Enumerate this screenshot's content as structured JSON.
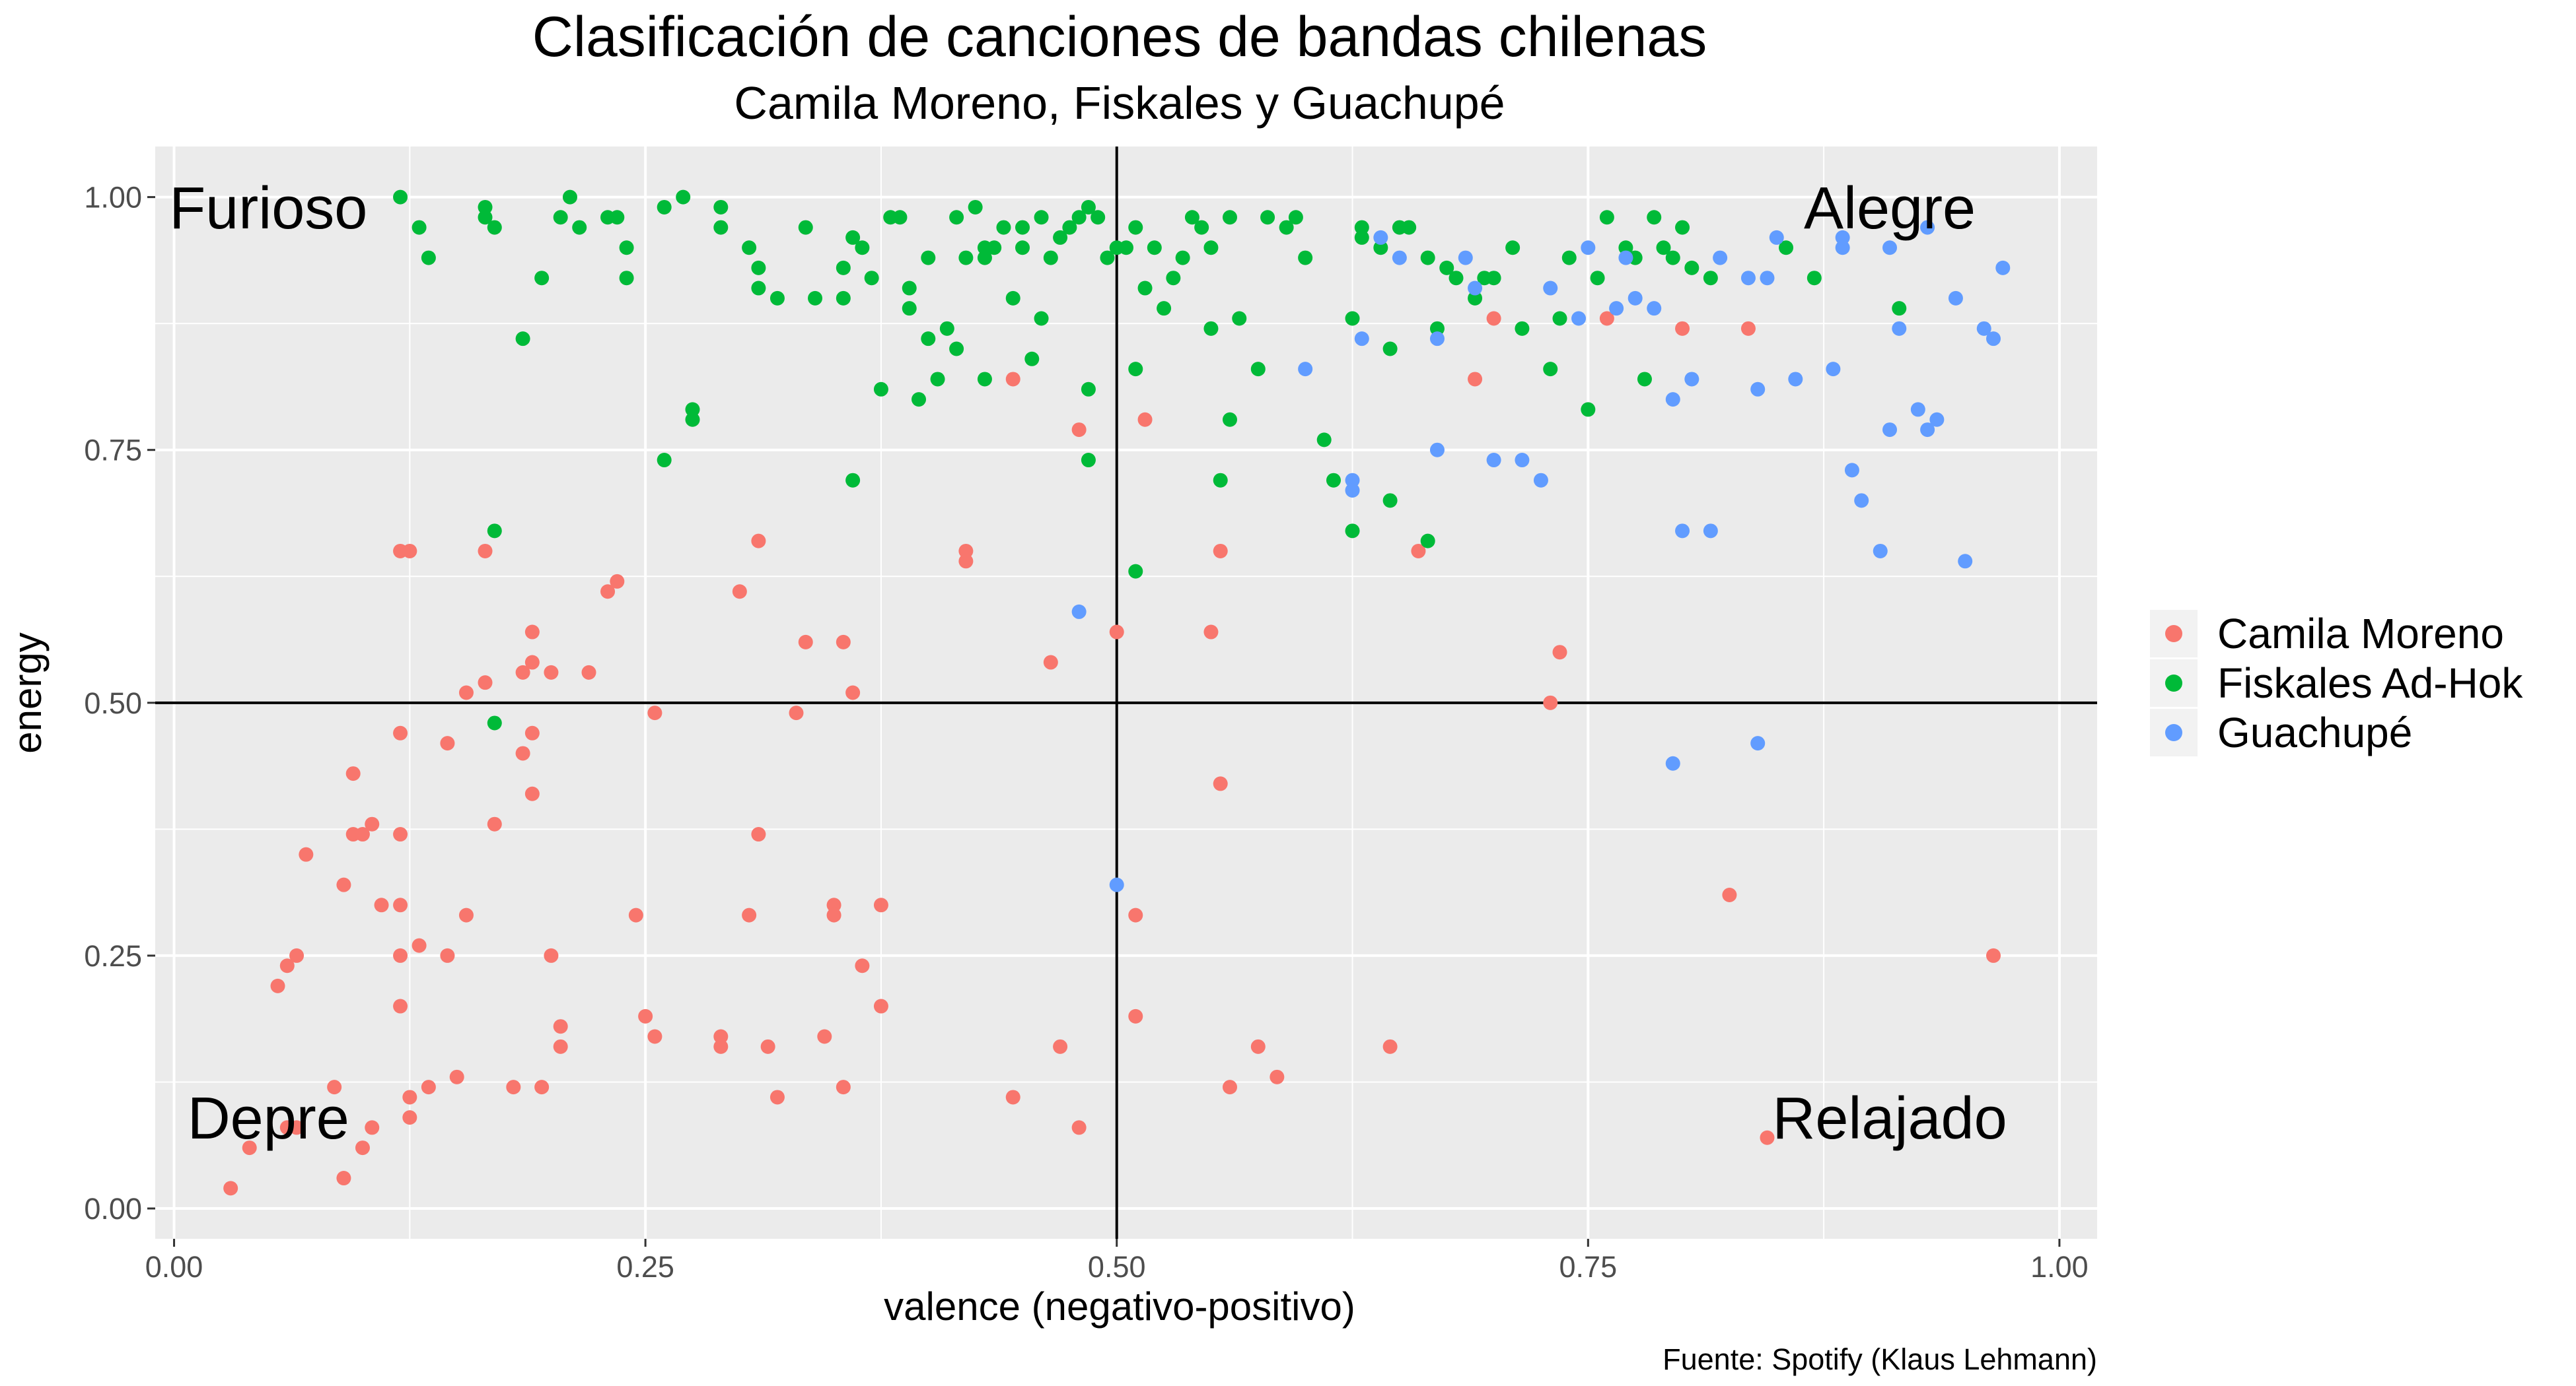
{
  "chart_data": {
    "type": "scatter",
    "title": "Clasificación de canciones de bandas chilenas",
    "subtitle": "Camila Moreno, Fiskales y Guachupé",
    "xlabel": "valence (negativo-positivo)",
    "ylabel": "energy",
    "caption": "Fuente: Spotify (Klaus Lehmann)",
    "xlim": [
      -0.01,
      1.02
    ],
    "ylim": [
      -0.03,
      1.05
    ],
    "x_ticks": [
      0,
      0.25,
      0.5,
      0.75,
      1
    ],
    "x_tick_labels": [
      "0.00",
      "0.25",
      "0.50",
      "0.75",
      "1.00"
    ],
    "y_ticks": [
      0,
      0.25,
      0.5,
      0.75,
      1
    ],
    "y_tick_labels": [
      "0.00",
      "0.25",
      "0.50",
      "0.75",
      "1.00"
    ],
    "reference_lines": {
      "x": 0.5,
      "y": 0.5
    },
    "grid": true,
    "legend_position": "right",
    "quadrant_labels": [
      {
        "text": "Furioso",
        "x": 0.05,
        "y": 0.99
      },
      {
        "text": "Alegre",
        "x": 0.91,
        "y": 0.99
      },
      {
        "text": "Depre",
        "x": 0.05,
        "y": 0.09
      },
      {
        "text": "Relajado",
        "x": 0.91,
        "y": 0.09
      }
    ],
    "series": [
      {
        "name": "Camila Moreno",
        "color": "#F8766D",
        "points": [
          [
            0.03,
            0.02
          ],
          [
            0.04,
            0.06
          ],
          [
            0.06,
            0.08
          ],
          [
            0.065,
            0.08
          ],
          [
            0.09,
            0.03
          ],
          [
            0.1,
            0.06
          ],
          [
            0.105,
            0.08
          ],
          [
            0.085,
            0.12
          ],
          [
            0.125,
            0.11
          ],
          [
            0.125,
            0.09
          ],
          [
            0.135,
            0.12
          ],
          [
            0.15,
            0.13
          ],
          [
            0.18,
            0.12
          ],
          [
            0.195,
            0.12
          ],
          [
            0.205,
            0.16
          ],
          [
            0.205,
            0.18
          ],
          [
            0.12,
            0.2
          ],
          [
            0.12,
            0.25
          ],
          [
            0.13,
            0.26
          ],
          [
            0.145,
            0.25
          ],
          [
            0.055,
            0.22
          ],
          [
            0.06,
            0.24
          ],
          [
            0.065,
            0.25
          ],
          [
            0.09,
            0.32
          ],
          [
            0.11,
            0.3
          ],
          [
            0.12,
            0.3
          ],
          [
            0.155,
            0.29
          ],
          [
            0.2,
            0.25
          ],
          [
            0.07,
            0.35
          ],
          [
            0.095,
            0.37
          ],
          [
            0.1,
            0.37
          ],
          [
            0.105,
            0.38
          ],
          [
            0.12,
            0.37
          ],
          [
            0.12,
            0.47
          ],
          [
            0.095,
            0.43
          ],
          [
            0.145,
            0.46
          ],
          [
            0.17,
            0.38
          ],
          [
            0.19,
            0.41
          ],
          [
            0.185,
            0.45
          ],
          [
            0.19,
            0.47
          ],
          [
            0.155,
            0.51
          ],
          [
            0.165,
            0.52
          ],
          [
            0.185,
            0.53
          ],
          [
            0.19,
            0.54
          ],
          [
            0.2,
            0.53
          ],
          [
            0.22,
            0.53
          ],
          [
            0.19,
            0.57
          ],
          [
            0.23,
            0.61
          ],
          [
            0.235,
            0.62
          ],
          [
            0.12,
            0.65
          ],
          [
            0.125,
            0.65
          ],
          [
            0.165,
            0.65
          ],
          [
            0.255,
            0.49
          ],
          [
            0.245,
            0.29
          ],
          [
            0.25,
            0.19
          ],
          [
            0.255,
            0.17
          ],
          [
            0.29,
            0.16
          ],
          [
            0.29,
            0.17
          ],
          [
            0.3,
            0.61
          ],
          [
            0.31,
            0.66
          ],
          [
            0.31,
            0.37
          ],
          [
            0.305,
            0.29
          ],
          [
            0.315,
            0.16
          ],
          [
            0.32,
            0.11
          ],
          [
            0.33,
            0.49
          ],
          [
            0.335,
            0.56
          ],
          [
            0.345,
            0.17
          ],
          [
            0.35,
            0.3
          ],
          [
            0.35,
            0.29
          ],
          [
            0.355,
            0.12
          ],
          [
            0.355,
            0.56
          ],
          [
            0.36,
            0.51
          ],
          [
            0.365,
            0.24
          ],
          [
            0.375,
            0.3
          ],
          [
            0.375,
            0.2
          ],
          [
            0.42,
            0.65
          ],
          [
            0.42,
            0.64
          ],
          [
            0.445,
            0.11
          ],
          [
            0.445,
            0.82
          ],
          [
            0.465,
            0.54
          ],
          [
            0.47,
            0.16
          ],
          [
            0.48,
            0.08
          ],
          [
            0.48,
            0.77
          ],
          [
            0.5,
            0.57
          ],
          [
            0.51,
            0.29
          ],
          [
            0.51,
            0.19
          ],
          [
            0.515,
            0.78
          ],
          [
            0.55,
            0.57
          ],
          [
            0.555,
            0.65
          ],
          [
            0.555,
            0.42
          ],
          [
            0.56,
            0.12
          ],
          [
            0.575,
            0.16
          ],
          [
            0.585,
            0.13
          ],
          [
            0.645,
            0.16
          ],
          [
            0.66,
            0.65
          ],
          [
            0.69,
            0.82
          ],
          [
            0.7,
            0.88
          ],
          [
            0.73,
            0.5
          ],
          [
            0.735,
            0.55
          ],
          [
            0.76,
            0.88
          ],
          [
            0.8,
            0.87
          ],
          [
            0.825,
            0.31
          ],
          [
            0.835,
            0.87
          ],
          [
            0.845,
            0.07
          ],
          [
            0.965,
            0.25
          ]
        ]
      },
      {
        "name": "Fiskales Ad-Hok",
        "color": "#00BA38",
        "points": [
          [
            0.12,
            1.0
          ],
          [
            0.13,
            0.97
          ],
          [
            0.135,
            0.94
          ],
          [
            0.165,
            0.98
          ],
          [
            0.165,
            0.99
          ],
          [
            0.17,
            0.97
          ],
          [
            0.185,
            0.86
          ],
          [
            0.195,
            0.92
          ],
          [
            0.205,
            0.98
          ],
          [
            0.21,
            1.0
          ],
          [
            0.215,
            0.97
          ],
          [
            0.23,
            0.98
          ],
          [
            0.235,
            0.98
          ],
          [
            0.24,
            0.95
          ],
          [
            0.24,
            0.92
          ],
          [
            0.26,
            0.99
          ],
          [
            0.27,
            1.0
          ],
          [
            0.26,
            0.74
          ],
          [
            0.275,
            0.78
          ],
          [
            0.275,
            0.79
          ],
          [
            0.17,
            0.67
          ],
          [
            0.17,
            0.48
          ],
          [
            0.29,
            0.99
          ],
          [
            0.29,
            0.97
          ],
          [
            0.305,
            0.95
          ],
          [
            0.31,
            0.93
          ],
          [
            0.31,
            0.91
          ],
          [
            0.32,
            0.9
          ],
          [
            0.335,
            0.97
          ],
          [
            0.34,
            0.9
          ],
          [
            0.355,
            0.93
          ],
          [
            0.355,
            0.9
          ],
          [
            0.36,
            0.96
          ],
          [
            0.36,
            0.72
          ],
          [
            0.365,
            0.95
          ],
          [
            0.37,
            0.92
          ],
          [
            0.375,
            0.81
          ],
          [
            0.38,
            0.98
          ],
          [
            0.385,
            0.98
          ],
          [
            0.39,
            0.91
          ],
          [
            0.39,
            0.89
          ],
          [
            0.395,
            0.8
          ],
          [
            0.4,
            0.94
          ],
          [
            0.4,
            0.86
          ],
          [
            0.405,
            0.82
          ],
          [
            0.41,
            0.87
          ],
          [
            0.415,
            0.98
          ],
          [
            0.415,
            0.85
          ],
          [
            0.42,
            0.94
          ],
          [
            0.425,
            0.99
          ],
          [
            0.43,
            0.94
          ],
          [
            0.43,
            0.95
          ],
          [
            0.43,
            0.82
          ],
          [
            0.435,
            0.95
          ],
          [
            0.44,
            0.97
          ],
          [
            0.445,
            0.9
          ],
          [
            0.45,
            0.97
          ],
          [
            0.45,
            0.95
          ],
          [
            0.455,
            0.84
          ],
          [
            0.46,
            0.88
          ],
          [
            0.46,
            0.98
          ],
          [
            0.465,
            0.94
          ],
          [
            0.47,
            0.96
          ],
          [
            0.475,
            0.97
          ],
          [
            0.48,
            0.98
          ],
          [
            0.485,
            0.99
          ],
          [
            0.49,
            0.98
          ],
          [
            0.485,
            0.81
          ],
          [
            0.485,
            0.74
          ],
          [
            0.495,
            0.94
          ],
          [
            0.5,
            0.95
          ],
          [
            0.505,
            0.95
          ],
          [
            0.51,
            0.97
          ],
          [
            0.51,
            0.83
          ],
          [
            0.51,
            0.63
          ],
          [
            0.515,
            0.91
          ],
          [
            0.52,
            0.95
          ],
          [
            0.525,
            0.89
          ],
          [
            0.53,
            0.92
          ],
          [
            0.535,
            0.94
          ],
          [
            0.54,
            0.98
          ],
          [
            0.545,
            0.97
          ],
          [
            0.55,
            0.95
          ],
          [
            0.55,
            0.87
          ],
          [
            0.555,
            0.72
          ],
          [
            0.56,
            0.78
          ],
          [
            0.56,
            0.98
          ],
          [
            0.565,
            0.88
          ],
          [
            0.575,
            0.83
          ],
          [
            0.58,
            0.98
          ],
          [
            0.59,
            0.97
          ],
          [
            0.595,
            0.98
          ],
          [
            0.6,
            0.94
          ],
          [
            0.61,
            0.76
          ],
          [
            0.615,
            0.72
          ],
          [
            0.625,
            0.88
          ],
          [
            0.63,
            0.97
          ],
          [
            0.63,
            0.96
          ],
          [
            0.625,
            0.67
          ],
          [
            0.64,
            0.95
          ],
          [
            0.645,
            0.85
          ],
          [
            0.645,
            0.7
          ],
          [
            0.65,
            0.97
          ],
          [
            0.655,
            0.97
          ],
          [
            0.665,
            0.94
          ],
          [
            0.665,
            0.66
          ],
          [
            0.67,
            0.87
          ],
          [
            0.675,
            0.93
          ],
          [
            0.68,
            0.92
          ],
          [
            0.69,
            0.9
          ],
          [
            0.695,
            0.92
          ],
          [
            0.7,
            0.92
          ],
          [
            0.71,
            0.95
          ],
          [
            0.715,
            0.87
          ],
          [
            0.73,
            0.83
          ],
          [
            0.735,
            0.88
          ],
          [
            0.74,
            0.94
          ],
          [
            0.75,
            0.79
          ],
          [
            0.755,
            0.92
          ],
          [
            0.76,
            0.98
          ],
          [
            0.77,
            0.95
          ],
          [
            0.775,
            0.94
          ],
          [
            0.78,
            0.82
          ],
          [
            0.785,
            0.98
          ],
          [
            0.79,
            0.95
          ],
          [
            0.795,
            0.94
          ],
          [
            0.8,
            0.97
          ],
          [
            0.805,
            0.93
          ],
          [
            0.815,
            0.92
          ],
          [
            0.855,
            0.95
          ],
          [
            0.87,
            0.92
          ],
          [
            0.915,
            0.89
          ]
        ]
      },
      {
        "name": "Guachupé",
        "color": "#619CFF",
        "points": [
          [
            0.48,
            0.59
          ],
          [
            0.5,
            0.32
          ],
          [
            0.6,
            0.83
          ],
          [
            0.625,
            0.72
          ],
          [
            0.625,
            0.71
          ],
          [
            0.63,
            0.86
          ],
          [
            0.64,
            0.96
          ],
          [
            0.65,
            0.94
          ],
          [
            0.67,
            0.86
          ],
          [
            0.67,
            0.75
          ],
          [
            0.685,
            0.94
          ],
          [
            0.69,
            0.91
          ],
          [
            0.7,
            0.74
          ],
          [
            0.715,
            0.74
          ],
          [
            0.725,
            0.72
          ],
          [
            0.73,
            0.91
          ],
          [
            0.745,
            0.88
          ],
          [
            0.75,
            0.95
          ],
          [
            0.765,
            0.89
          ],
          [
            0.77,
            0.94
          ],
          [
            0.775,
            0.9
          ],
          [
            0.785,
            0.89
          ],
          [
            0.795,
            0.8
          ],
          [
            0.795,
            0.44
          ],
          [
            0.8,
            0.67
          ],
          [
            0.805,
            0.82
          ],
          [
            0.815,
            0.67
          ],
          [
            0.82,
            0.94
          ],
          [
            0.835,
            0.92
          ],
          [
            0.84,
            0.81
          ],
          [
            0.84,
            0.46
          ],
          [
            0.845,
            0.92
          ],
          [
            0.85,
            0.96
          ],
          [
            0.86,
            0.82
          ],
          [
            0.88,
            0.83
          ],
          [
            0.885,
            0.95
          ],
          [
            0.885,
            0.96
          ],
          [
            0.89,
            0.73
          ],
          [
            0.895,
            0.7
          ],
          [
            0.905,
            0.65
          ],
          [
            0.91,
            0.95
          ],
          [
            0.91,
            0.77
          ],
          [
            0.915,
            0.87
          ],
          [
            0.925,
            0.79
          ],
          [
            0.93,
            0.97
          ],
          [
            0.93,
            0.77
          ],
          [
            0.935,
            0.78
          ],
          [
            0.945,
            0.9
          ],
          [
            0.95,
            0.64
          ],
          [
            0.96,
            0.87
          ],
          [
            0.965,
            0.86
          ],
          [
            0.97,
            0.93
          ]
        ]
      }
    ]
  }
}
